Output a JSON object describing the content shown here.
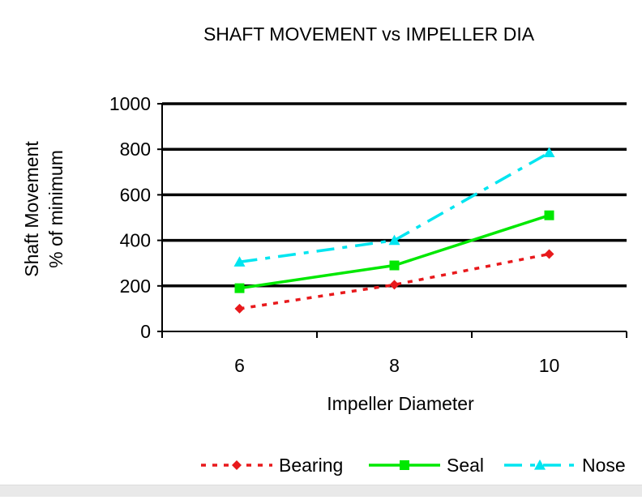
{
  "chart_data": {
    "type": "line",
    "title": "SHAFT  MOVEMENT  vs IMPELLER DIA",
    "xlabel": "Impeller Diameter",
    "ylabel": [
      "Shaft Movement",
      "% of minimum"
    ],
    "categories": [
      "6",
      "8",
      "10"
    ],
    "ylim": [
      0,
      1000
    ],
    "yticks": [
      "0",
      "200",
      "400",
      "600",
      "800",
      "1000"
    ],
    "grid": "horizontal",
    "legend_position": "bottom",
    "series": [
      {
        "name": "Bearing",
        "values": [
          100,
          205,
          340
        ],
        "color": "#e8191c",
        "line": "dotted",
        "marker": "diamond"
      },
      {
        "name": "Seal",
        "values": [
          190,
          290,
          510
        ],
        "color": "#00e800",
        "line": "solid",
        "marker": "square"
      },
      {
        "name": "Nose",
        "values": [
          305,
          400,
          785
        ],
        "color": "#00e5f0",
        "line": "dashdot",
        "marker": "triangle"
      }
    ]
  }
}
